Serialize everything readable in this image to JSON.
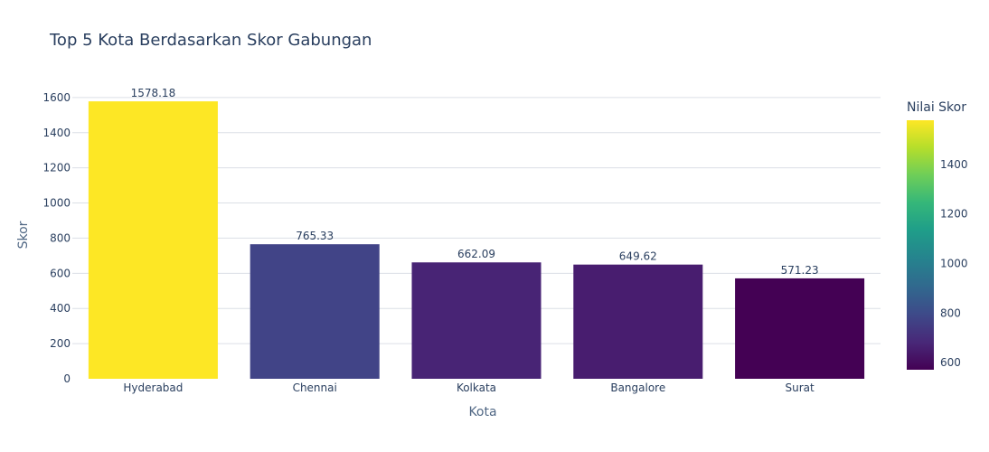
{
  "chart_data": {
    "type": "bar",
    "title": "Top 5 Kota Berdasarkan Skor Gabungan",
    "xlabel": "Kota",
    "ylabel": "Skor",
    "categories": [
      "Hyderabad",
      "Chennai",
      "Kolkata",
      "Bangalore",
      "Surat"
    ],
    "values": [
      1578.18,
      765.33,
      662.09,
      649.62,
      571.23
    ],
    "value_labels": [
      "1578.18",
      "765.33",
      "662.09",
      "649.62",
      "571.23"
    ],
    "ylim": [
      0,
      1661
    ],
    "yticks": [
      0,
      200,
      400,
      600,
      800,
      1000,
      1200,
      1400,
      1600
    ],
    "grid": true,
    "colorscale": "viridis",
    "colorbar": {
      "title": "Nilai Skor",
      "range": [
        571.23,
        1578.18
      ],
      "ticks": [
        600,
        800,
        1000,
        1200,
        1400
      ]
    },
    "bar_colors": [
      "#fde725",
      "#414487",
      "#482475",
      "#481d6f",
      "#440154"
    ]
  }
}
